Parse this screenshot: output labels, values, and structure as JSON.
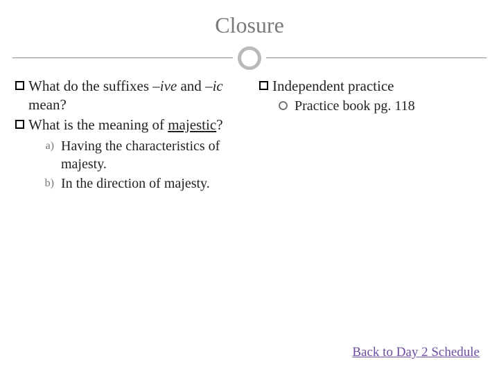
{
  "title": "Closure",
  "left": {
    "q1_prefix": "What do the suffixes ",
    "q1_ive": "–ive",
    "q1_mid": " and ",
    "q1_ic": "–ic",
    "q1_suffix": " mean?",
    "q2_prefix": "What is the meaning of ",
    "q2_word": "majestic",
    "q2_suffix": "?",
    "opt_a_marker": "a)",
    "opt_a": "Having the characteristics of majesty.",
    "opt_b_marker": "b)",
    "opt_b": "In the direction of majesty."
  },
  "right": {
    "heading": "Independent practice",
    "sub1": "Practice book pg. 118"
  },
  "link": "Back to Day 2 Schedule",
  "style": {
    "title_color": "#7a7a7a",
    "text_color": "#222222",
    "marker_color": "#757575",
    "link_color": "#6b4ca0",
    "divider_color": "#8a8a8a",
    "circle_border": "#b9b9b9",
    "background": "#ffffff",
    "title_fontsize": 32,
    "body_fontsize": 21,
    "sub_fontsize": 20
  }
}
